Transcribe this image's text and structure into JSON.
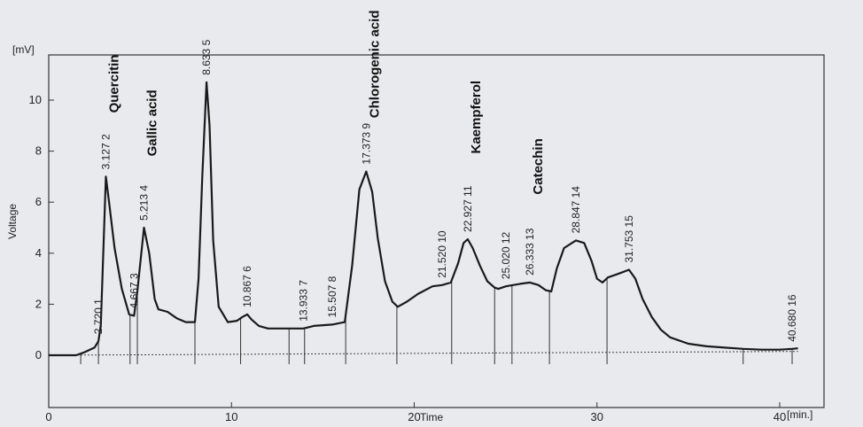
{
  "chart_data": {
    "type": "line",
    "title": "",
    "xlabel": "Time",
    "ylabel": "Voltage",
    "x_unit": "[min.]",
    "y_unit": "[mV]",
    "xlim": [
      0,
      42
    ],
    "ylim": [
      -1,
      12
    ],
    "x_ticks": [
      0,
      10,
      20,
      30,
      40
    ],
    "y_ticks": [
      0,
      2,
      4,
      6,
      8,
      10
    ],
    "grid": false,
    "colors": {
      "trace": "#1a1a1a",
      "baseline": "#444444",
      "background": "#e9eaee"
    },
    "series": [
      {
        "x": [
          0,
          1.5,
          1.9,
          2.5,
          2.72,
          2.85,
          3.127,
          3.3,
          3.6,
          4.0,
          4.4,
          4.667,
          4.85,
          5.213,
          5.5,
          5.8,
          6.0,
          6.5,
          7.0,
          7.5,
          8.0,
          8.2,
          8.4,
          8.633,
          8.8,
          9.0,
          9.3,
          9.8,
          10.3,
          10.6,
          10.867,
          11.1,
          11.5,
          12.0,
          13.0,
          13.933,
          14.5,
          15.507,
          16.2,
          16.6,
          17.0,
          17.373,
          17.7,
          18.0,
          18.4,
          18.8,
          19.1,
          19.6,
          20.2,
          21.0,
          21.52,
          22.0,
          22.4,
          22.7,
          22.927,
          23.2,
          23.6,
          24.0,
          24.4,
          24.6,
          25.02,
          25.4,
          25.8,
          26.333,
          26.8,
          27.2,
          27.5,
          27.8,
          28.2,
          28.847,
          29.3,
          29.7,
          30.0,
          30.3,
          30.6,
          31.2,
          31.753,
          32.1,
          32.5,
          33.0,
          33.5,
          34.0,
          35.0,
          36.0,
          37.0,
          38.0,
          39.0,
          40.0,
          40.68,
          41.0
        ],
        "y": [
          0,
          0,
          0.1,
          0.3,
          0.55,
          1.2,
          7.0,
          6.0,
          4.2,
          2.6,
          1.6,
          1.55,
          2.5,
          5.0,
          4.0,
          2.2,
          1.8,
          1.7,
          1.45,
          1.3,
          1.3,
          3.0,
          7.0,
          10.7,
          9.0,
          4.5,
          1.9,
          1.3,
          1.35,
          1.5,
          1.6,
          1.4,
          1.15,
          1.05,
          1.05,
          1.05,
          1.15,
          1.2,
          1.3,
          3.5,
          6.5,
          7.2,
          6.4,
          4.6,
          2.9,
          2.1,
          1.9,
          2.1,
          2.4,
          2.7,
          2.75,
          2.85,
          3.6,
          4.4,
          4.55,
          4.2,
          3.5,
          2.9,
          2.65,
          2.6,
          2.7,
          2.75,
          2.8,
          2.85,
          2.75,
          2.55,
          2.5,
          3.4,
          4.2,
          4.5,
          4.4,
          3.7,
          3.0,
          2.85,
          3.05,
          3.2,
          3.35,
          3.0,
          2.2,
          1.5,
          1.0,
          0.7,
          0.45,
          0.35,
          0.3,
          0.25,
          0.22,
          0.22,
          0.25,
          0.27
        ]
      }
    ],
    "peak_labels": [
      {
        "time": 2.72,
        "text": "2.720",
        "num": "1"
      },
      {
        "time": 3.127,
        "text": "3.127",
        "num": "2"
      },
      {
        "time": 4.667,
        "text": "4.667",
        "num": "3"
      },
      {
        "time": 5.213,
        "text": "5.213",
        "num": "4"
      },
      {
        "time": 8.633,
        "text": "8.633",
        "num": "5"
      },
      {
        "time": 10.867,
        "text": "10.867",
        "num": "6"
      },
      {
        "time": 13.933,
        "text": "13.933",
        "num": "7"
      },
      {
        "time": 15.507,
        "text": "15.507",
        "num": "8"
      },
      {
        "time": 17.373,
        "text": "17.373",
        "num": "9"
      },
      {
        "time": 21.52,
        "text": "21.520",
        "num": "10"
      },
      {
        "time": 22.927,
        "text": "22.927",
        "num": "11"
      },
      {
        "time": 25.02,
        "text": "25.020",
        "num": "12"
      },
      {
        "time": 26.333,
        "text": "26.333",
        "num": "13"
      },
      {
        "time": 28.847,
        "text": "28.847",
        "num": "14"
      },
      {
        "time": 31.753,
        "text": "31.753",
        "num": "15"
      },
      {
        "time": 40.68,
        "text": "40.680",
        "num": "16"
      }
    ],
    "compound_labels": [
      {
        "time": 3.127,
        "text": "Quercitin"
      },
      {
        "time": 5.213,
        "text": "Gallic acid"
      },
      {
        "time": 17.373,
        "text": "Chlorogenic acid"
      },
      {
        "time": 22.927,
        "text": "Kaempferol"
      },
      {
        "time": 26.333,
        "text": "Catechin"
      }
    ],
    "integration_markers": [
      1.75,
      2.72,
      4.45,
      4.85,
      8.0,
      10.5,
      13.15,
      14.0,
      16.25,
      19.05,
      22.05,
      24.4,
      25.35,
      27.4,
      30.55,
      38.0,
      40.68
    ]
  }
}
